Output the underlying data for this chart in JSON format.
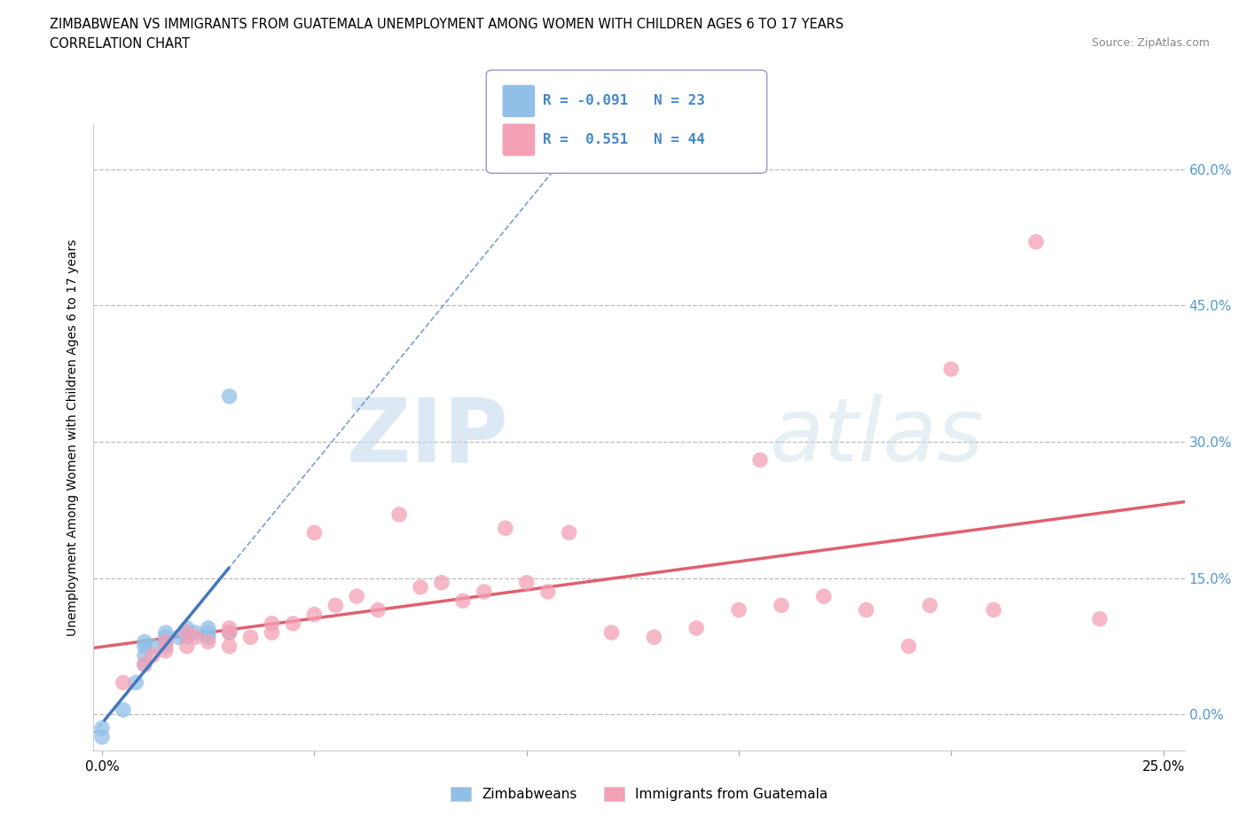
{
  "title_line1": "ZIMBABWEAN VS IMMIGRANTS FROM GUATEMALA UNEMPLOYMENT AMONG WOMEN WITH CHILDREN AGES 6 TO 17 YEARS",
  "title_line2": "CORRELATION CHART",
  "source": "Source: ZipAtlas.com",
  "ylabel": "Unemployment Among Women with Children Ages 6 to 17 years",
  "xlim": [
    -0.002,
    0.255
  ],
  "ylim": [
    -0.04,
    0.65
  ],
  "xticks": [
    0.0,
    0.05,
    0.1,
    0.15,
    0.2,
    0.25
  ],
  "yticks": [
    0.0,
    0.15,
    0.3,
    0.45,
    0.6
  ],
  "xtick_labels": [
    "0.0%",
    "",
    "",
    "",
    "",
    "25.0%"
  ],
  "ytick_labels": [
    "0.0%",
    "15.0%",
    "30.0%",
    "45.0%",
    "60.0%"
  ],
  "blue_color": "#90bfe8",
  "pink_color": "#f4a0b5",
  "blue_line_color": "#4477bb",
  "pink_line_color": "#e06070",
  "label1": "Zimbabweans",
  "label2": "Immigrants from Guatemala",
  "zimbabwean_x": [
    0.0,
    0.0,
    0.005,
    0.008,
    0.01,
    0.01,
    0.01,
    0.01,
    0.012,
    0.015,
    0.015,
    0.015,
    0.015,
    0.018,
    0.02,
    0.02,
    0.02,
    0.022,
    0.025,
    0.025,
    0.025,
    0.03,
    0.03
  ],
  "zimbabwean_y": [
    -0.025,
    -0.015,
    0.005,
    0.035,
    0.055,
    0.065,
    0.075,
    0.08,
    0.075,
    0.075,
    0.08,
    0.085,
    0.09,
    0.085,
    0.085,
    0.09,
    0.095,
    0.09,
    0.085,
    0.09,
    0.095,
    0.09,
    0.35
  ],
  "guatemala_x": [
    0.005,
    0.01,
    0.012,
    0.015,
    0.015,
    0.02,
    0.02,
    0.022,
    0.025,
    0.03,
    0.03,
    0.03,
    0.035,
    0.04,
    0.04,
    0.045,
    0.05,
    0.05,
    0.055,
    0.06,
    0.065,
    0.07,
    0.075,
    0.08,
    0.085,
    0.09,
    0.095,
    0.1,
    0.105,
    0.11,
    0.12,
    0.13,
    0.14,
    0.15,
    0.155,
    0.16,
    0.17,
    0.18,
    0.19,
    0.195,
    0.2,
    0.21,
    0.22,
    0.235
  ],
  "guatemala_y": [
    0.035,
    0.055,
    0.065,
    0.07,
    0.08,
    0.075,
    0.09,
    0.085,
    0.08,
    0.09,
    0.095,
    0.075,
    0.085,
    0.09,
    0.1,
    0.1,
    0.11,
    0.2,
    0.12,
    0.13,
    0.115,
    0.22,
    0.14,
    0.145,
    0.125,
    0.135,
    0.205,
    0.145,
    0.135,
    0.2,
    0.09,
    0.085,
    0.095,
    0.115,
    0.28,
    0.12,
    0.13,
    0.115,
    0.075,
    0.12,
    0.38,
    0.115,
    0.52,
    0.105
  ]
}
